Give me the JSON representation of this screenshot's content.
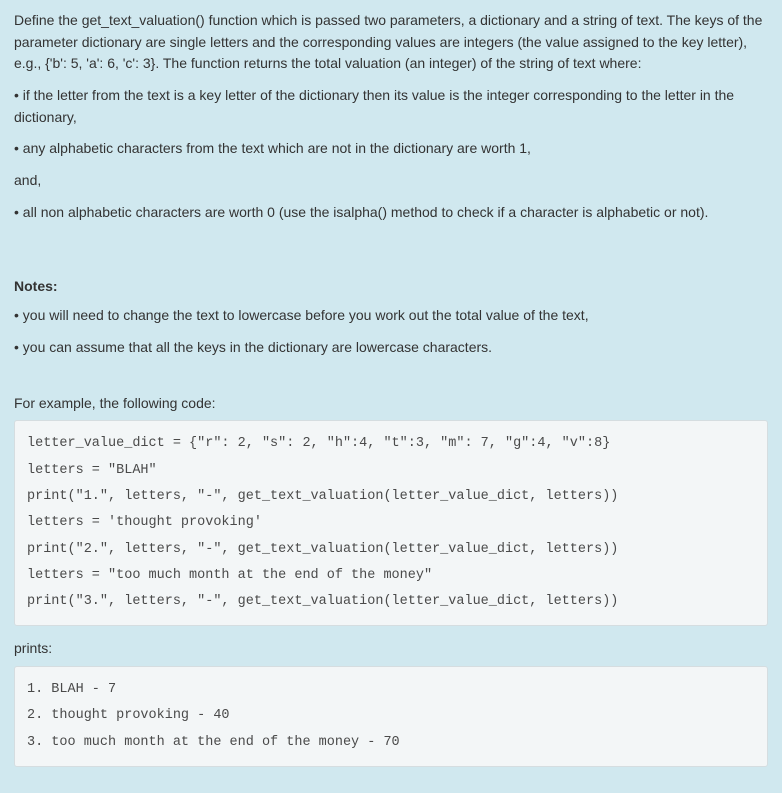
{
  "background_color": "#d0e8ef",
  "code_background_color": "#f3f6f7",
  "code_border_color": "#d5dde0",
  "text_color": "#333333",
  "intro": "Define the get_text_valuation() function which is passed two parameters, a dictionary and a string of text.  The keys of the parameter dictionary are single letters and the corresponding values are integers (the value assigned to the key letter), e.g., {'b': 5, 'a': 6, 'c': 3}.  The function returns the total valuation (an integer) of the string of text where:",
  "bullets1": [
    "if the letter from the text is a key letter of the dictionary then its value is the integer corresponding to the letter in the dictionary,",
    "any alphabetic characters from the text which are not in the dictionary are worth 1,"
  ],
  "and_label": "and,",
  "bullets2": [
    "all non alphabetic characters are worth 0 (use the isalpha() method to check if a character is alphabetic or not)."
  ],
  "notes_title": "Notes:",
  "notes": [
    "you will need to change the text to lowercase before you work out the total value of the text,",
    "you can assume that all the keys in the dictionary are lowercase characters."
  ],
  "example_label": "For example, the following code:",
  "code1": "letter_value_dict = {\"r\": 2, \"s\": 2, \"h\":4, \"t\":3, \"m\": 7, \"g\":4, \"v\":8}\nletters = \"BLAH\"\nprint(\"1.\", letters, \"-\", get_text_valuation(letter_value_dict, letters))\nletters = 'thought provoking'\nprint(\"2.\", letters, \"-\", get_text_valuation(letter_value_dict, letters))\nletters = \"too much month at the end of the money\"\nprint(\"3.\", letters, \"-\", get_text_valuation(letter_value_dict, letters))",
  "prints_label": "prints:",
  "code2": "1. BLAH - 7\n2. thought provoking - 40\n3. too much month at the end of the money - 70"
}
